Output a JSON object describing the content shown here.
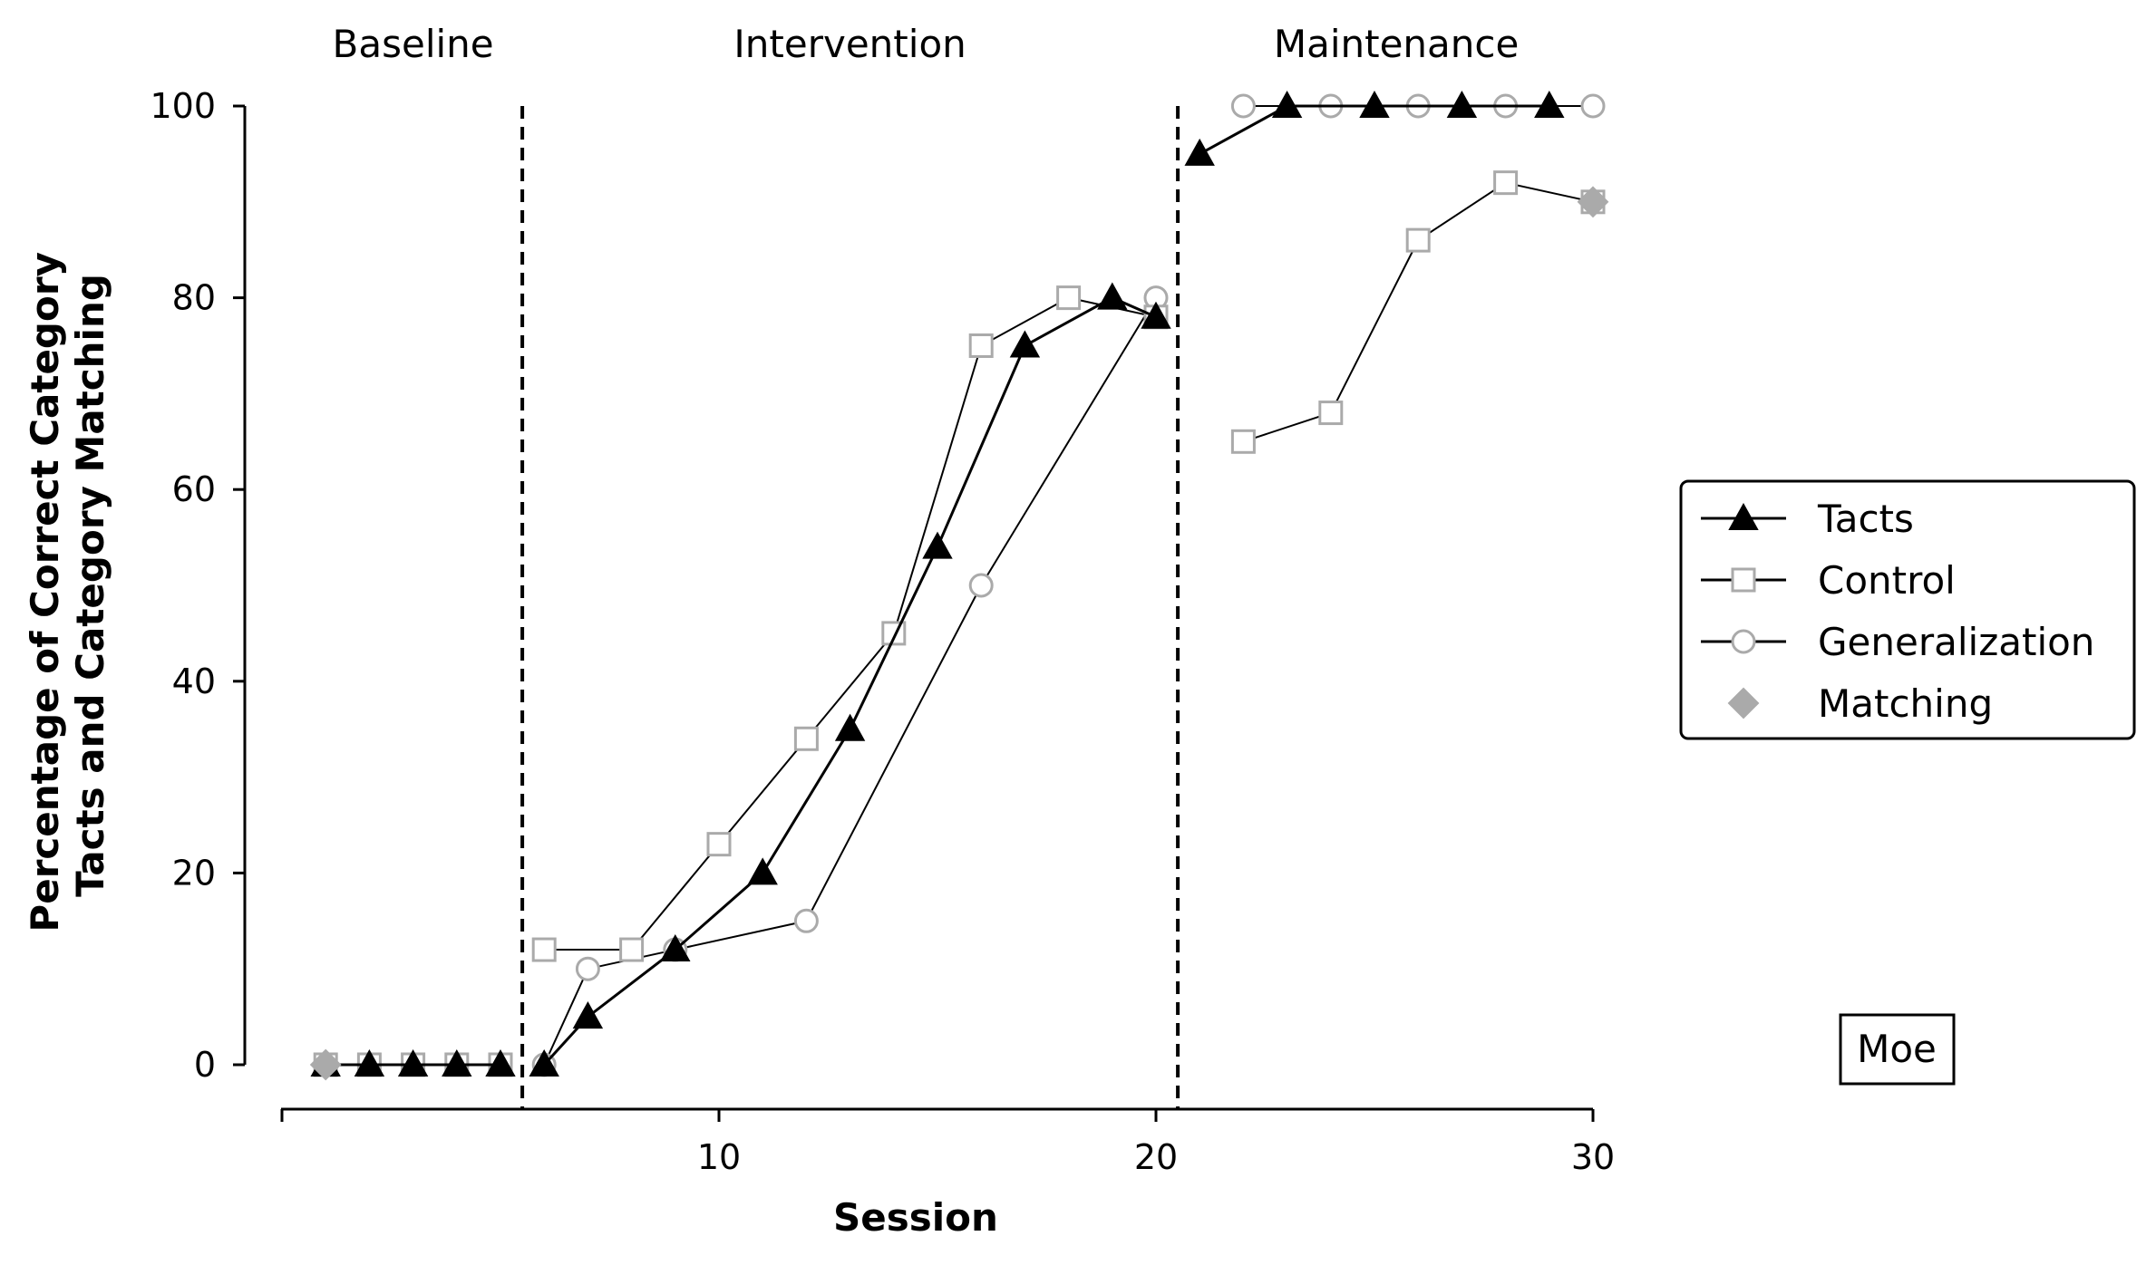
{
  "chart_data": {
    "type": "line",
    "xlabel": "Session",
    "ylabel_lines": [
      "Percentage of Correct Category",
      "Tacts and Category Matching"
    ],
    "xlim": [
      0,
      30
    ],
    "ylim": [
      0,
      100
    ],
    "x_ticks": [
      10,
      20,
      30
    ],
    "x_minor_ticks": [
      0,
      10,
      20,
      30
    ],
    "y_ticks": [
      0,
      20,
      40,
      60,
      80,
      100
    ],
    "phases": [
      {
        "label": "Baseline",
        "start": 1,
        "end": 5
      },
      {
        "label": "Intervention",
        "start": 6,
        "end": 20
      },
      {
        "label": "Maintenance",
        "start": 21,
        "end": 30
      }
    ],
    "phase_change_lines": [
      5.5,
      20.5
    ],
    "participant": "Moe",
    "legend_position": "right",
    "series": [
      {
        "name": "Tacts",
        "marker": "triangle",
        "color": "#000000",
        "fill": "#000000",
        "segments": [
          [
            [
              1,
              0
            ],
            [
              2,
              0
            ],
            [
              3,
              0
            ],
            [
              4,
              0
            ],
            [
              5,
              0
            ]
          ],
          [
            [
              6,
              0
            ],
            [
              7,
              5
            ],
            [
              9,
              12
            ],
            [
              11,
              20
            ],
            [
              13,
              35
            ],
            [
              15,
              54
            ],
            [
              17,
              75
            ],
            [
              19,
              80
            ],
            [
              20,
              78
            ]
          ],
          [
            [
              21,
              95
            ],
            [
              23,
              100
            ],
            [
              25,
              100
            ],
            [
              27,
              100
            ],
            [
              29,
              100
            ]
          ]
        ]
      },
      {
        "name": "Control",
        "marker": "square",
        "color": "#aaaaaa",
        "fill": "#ffffff",
        "segments": [
          [
            [
              1,
              0
            ],
            [
              2,
              0
            ],
            [
              3,
              0
            ],
            [
              4,
              0
            ],
            [
              5,
              0
            ]
          ],
          [
            [
              6,
              12
            ],
            [
              8,
              12
            ],
            [
              10,
              23
            ],
            [
              12,
              34
            ],
            [
              14,
              45
            ],
            [
              16,
              75
            ],
            [
              18,
              80
            ],
            [
              20,
              78
            ]
          ],
          [
            [
              22,
              65
            ],
            [
              24,
              68
            ],
            [
              26,
              86
            ],
            [
              28,
              92
            ],
            [
              30,
              90
            ]
          ]
        ]
      },
      {
        "name": "Generalization",
        "marker": "circle",
        "color": "#aaaaaa",
        "fill": "#ffffff",
        "segments": [
          [
            [
              1,
              0
            ],
            [
              2,
              0
            ],
            [
              3,
              0
            ],
            [
              4,
              0
            ],
            [
              5,
              0
            ]
          ],
          [
            [
              6,
              0
            ],
            [
              7,
              10
            ],
            [
              9,
              12
            ],
            [
              12,
              15
            ],
            [
              16,
              50
            ],
            [
              20,
              80
            ]
          ],
          [
            [
              22,
              100
            ],
            [
              24,
              100
            ],
            [
              26,
              100
            ],
            [
              28,
              100
            ],
            [
              30,
              100
            ]
          ]
        ]
      },
      {
        "name": "Matching",
        "marker": "diamond",
        "color": "#aaaaaa",
        "fill": "#aaaaaa",
        "segments": [
          [
            [
              1,
              0
            ]
          ],
          [
            [
              30,
              90
            ]
          ]
        ]
      }
    ]
  }
}
